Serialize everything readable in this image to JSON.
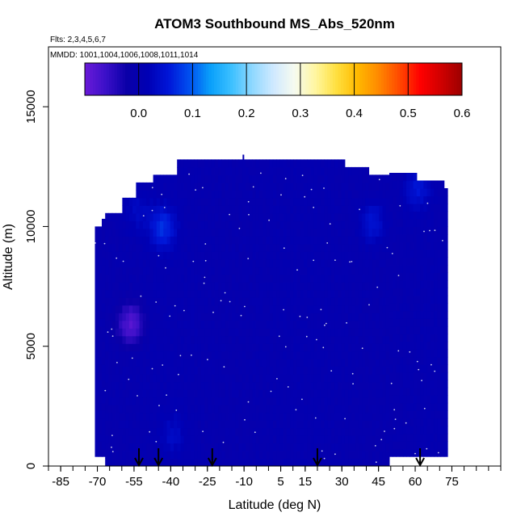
{
  "chart_data": {
    "type": "heatmap",
    "title": "ATOM3 Southbound MS_Abs_520nm",
    "flights_label": "Flts: 2,3,4,5,6,7",
    "mmdd_label": "MMDD: 1001,1004,1006,1008,1011,1014",
    "xlabel": "Latitude (deg N)",
    "ylabel": "Altitude (m)",
    "xlim": [
      -90,
      95
    ],
    "ylim": [
      0,
      17500
    ],
    "x_ticks": [
      "-85",
      "-70",
      "-55",
      "-40",
      "-25",
      "-10",
      "5",
      "15",
      "30",
      "45",
      "60",
      "75"
    ],
    "x_tick_values": [
      -85,
      -70,
      -55,
      -40,
      -25,
      -10,
      5,
      15,
      30,
      45,
      60,
      75
    ],
    "y_ticks": [
      "0",
      "5000",
      "10000",
      "15000"
    ],
    "y_tick_values": [
      0,
      5000,
      10000,
      15000
    ],
    "colorbar": {
      "range": [
        -0.1,
        0.6
      ],
      "tick_labels": [
        "0.0",
        "0.1",
        "0.2",
        "0.3",
        "0.4",
        "0.5",
        "0.6"
      ],
      "tick_values": [
        0.0,
        0.1,
        0.2,
        0.3,
        0.4,
        0.5,
        0.6
      ],
      "colors": [
        "#6a1ad8",
        "#3b10c8",
        "#0a00a8",
        "#0000b4",
        "#0016d8",
        "#0050f0",
        "#0aa0fa",
        "#3cc0ff",
        "#90d8ff",
        "#cfe9ff",
        "#f6fbf0",
        "#fff6a0",
        "#ffe040",
        "#ffba00",
        "#ff8a00",
        "#ff4a00",
        "#ff0000",
        "#d00000",
        "#9c0000"
      ]
    },
    "field": {
      "lat_range": [
        -71,
        72
      ],
      "alt_range": [
        0,
        13000
      ],
      "typical_value": 0.0,
      "features": [
        {
          "lat": -57,
          "alt": 5800,
          "value": -0.08
        },
        {
          "lat": -44,
          "alt": 9800,
          "value": 0.07
        },
        {
          "lat": -55,
          "alt": 10500,
          "value": 0.03
        },
        {
          "lat": 42,
          "alt": 10000,
          "value": 0.05
        },
        {
          "lat": 60,
          "alt": 11400,
          "value": 0.05
        },
        {
          "lat": -40,
          "alt": 1200,
          "value": 0.03
        }
      ]
    },
    "profile_markers_lat": [
      -53,
      -45,
      -23,
      20,
      62
    ]
  }
}
